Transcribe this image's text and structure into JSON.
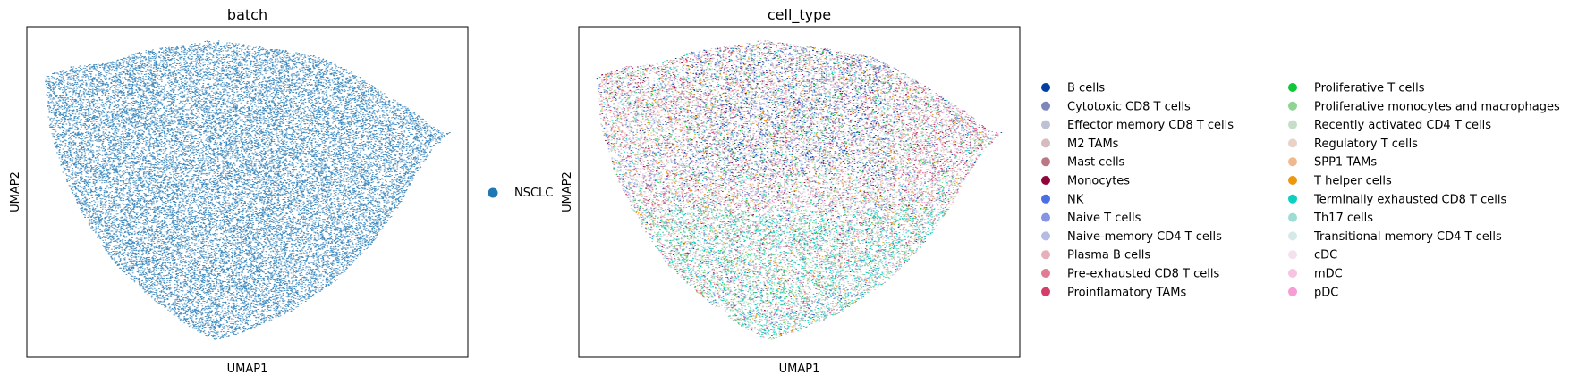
{
  "chart_data": [
    {
      "type": "scatter",
      "title": "batch",
      "xlabel": "UMAP1",
      "ylabel": "UMAP2",
      "grid": false,
      "legend_placement": "right",
      "ticks_shown": false,
      "point_density": "dense",
      "series": [
        {
          "name": "NSCLC",
          "color": "#1f77b4"
        }
      ]
    },
    {
      "type": "scatter",
      "title": "cell_type",
      "xlabel": "UMAP1",
      "ylabel": "UMAP2",
      "grid": false,
      "legend_placement": "right",
      "legend_columns": 2,
      "ticks_shown": false,
      "point_density": "dense",
      "series": [
        {
          "name": "B cells",
          "color": "#023fa5"
        },
        {
          "name": "Cytotoxic CD8 T cells",
          "color": "#7d87b9"
        },
        {
          "name": "Effector memory CD8 T cells",
          "color": "#bec1d4"
        },
        {
          "name": "M2 TAMs",
          "color": "#d6bcc0"
        },
        {
          "name": "Mast cells",
          "color": "#bb7784"
        },
        {
          "name": "Monocytes",
          "color": "#8e063b"
        },
        {
          "name": "NK",
          "color": "#4a6fe3"
        },
        {
          "name": "Naive T cells",
          "color": "#8595e1"
        },
        {
          "name": "Naive-memory CD4 T cells",
          "color": "#b5bbe3"
        },
        {
          "name": "Plasma B cells",
          "color": "#e6afb9"
        },
        {
          "name": "Pre-exhausted CD8 T cells",
          "color": "#e07b91"
        },
        {
          "name": "Proinflamatory TAMs",
          "color": "#d33f6a"
        },
        {
          "name": "Proliferative T cells",
          "color": "#11c638"
        },
        {
          "name": "Proliferative monocytes and macrophages",
          "color": "#8dd593"
        },
        {
          "name": "Recently activated CD4 T cells",
          "color": "#c6dec7"
        },
        {
          "name": "Regulatory T cells",
          "color": "#ead3c6"
        },
        {
          "name": "SPP1 TAMs",
          "color": "#f0b98d"
        },
        {
          "name": "T helper cells",
          "color": "#ef9708"
        },
        {
          "name": "Terminally exhausted CD8 T cells",
          "color": "#0fcfc0"
        },
        {
          "name": "Th17 cells",
          "color": "#9cded6"
        },
        {
          "name": "Transitional memory CD4 T cells",
          "color": "#d5eae7"
        },
        {
          "name": "cDC",
          "color": "#f3e1eb"
        },
        {
          "name": "mDC",
          "color": "#f6c4e1"
        },
        {
          "name": "pDC",
          "color": "#f79cd4"
        }
      ]
    }
  ]
}
